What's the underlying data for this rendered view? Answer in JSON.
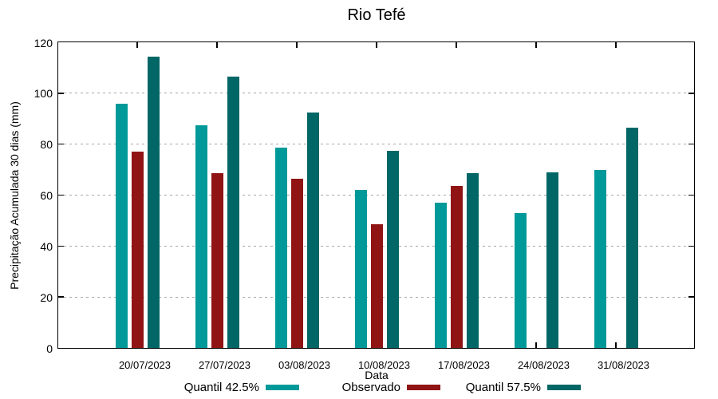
{
  "chart_data": {
    "type": "bar",
    "title": "Rio Tefé",
    "xlabel": "Data",
    "ylabel": "Precipitação Acumulada 30 dias (mm)",
    "ylim": [
      0,
      120
    ],
    "yticks": [
      0,
      20,
      40,
      60,
      80,
      100,
      120
    ],
    "grid": "horizontal dashed gridlines at 20,40,60,80,100",
    "legend_position": "bottom, below x axis",
    "categories": [
      "20/07/2023",
      "27/07/2023",
      "03/08/2023",
      "10/08/2023",
      "17/08/2023",
      "24/08/2023",
      "31/08/2023"
    ],
    "series": [
      {
        "name": "Quantil 42.5%",
        "color": "#009999",
        "values": [
          96,
          87.5,
          78.5,
          62,
          57,
          53,
          70
        ]
      },
      {
        "name": "Observado",
        "color": "#901414",
        "values": [
          77,
          68.5,
          66.5,
          48.5,
          63.5,
          null,
          null
        ]
      },
      {
        "name": "Quantil 57.5%",
        "color": "#006666",
        "values": [
          114.5,
          106.5,
          92.5,
          77.5,
          68.5,
          69,
          86.5
        ]
      }
    ]
  },
  "styles": {
    "grid_color": "#a6a6a6",
    "axis_color": "#000000",
    "background": "#ffffff"
  }
}
